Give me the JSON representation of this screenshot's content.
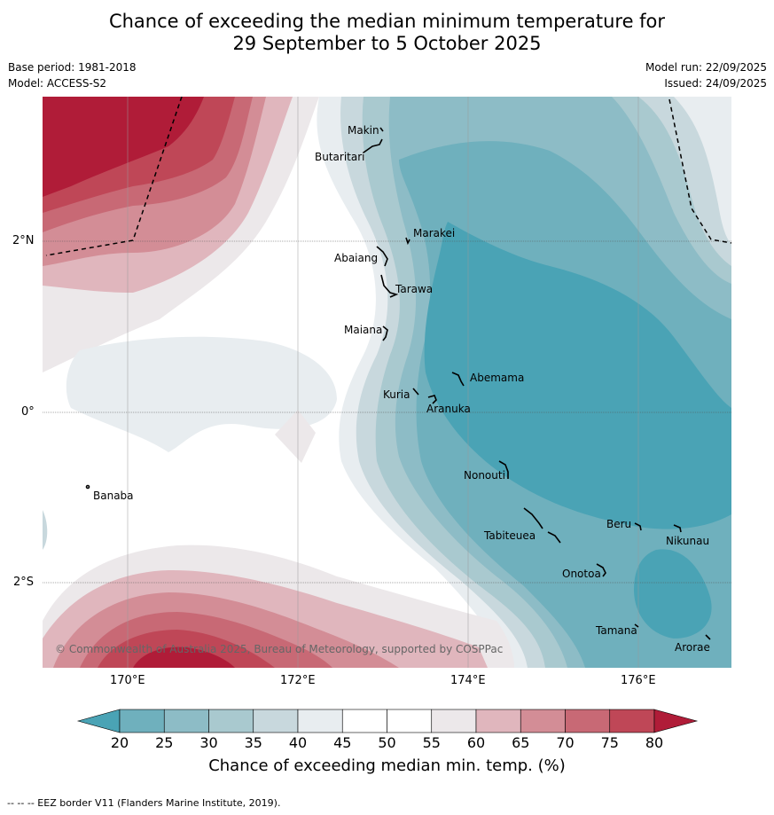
{
  "title": {
    "line1": "Chance of exceeding the median minimum temperature for",
    "line2": "29 September to 5 October 2025"
  },
  "meta": {
    "base_period": "Base period: 1981-2018",
    "model": "Model: ACCESS-S2",
    "model_run": "Model run: 22/09/2025",
    "issued": "Issued: 24/09/2025"
  },
  "axes": {
    "lat_labels": [
      "2°N",
      "0°",
      "2°S"
    ],
    "lon_labels": [
      "170°E",
      "172°E",
      "174°E",
      "176°E"
    ]
  },
  "places": [
    {
      "name": "Makin"
    },
    {
      "name": "Butaritari"
    },
    {
      "name": "Marakei"
    },
    {
      "name": "Abaiang"
    },
    {
      "name": "Tarawa"
    },
    {
      "name": "Maiana"
    },
    {
      "name": "Abemama"
    },
    {
      "name": "Kuria"
    },
    {
      "name": "Aranuka"
    },
    {
      "name": "Banaba"
    },
    {
      "name": "Nonouti"
    },
    {
      "name": "Tabiteuea"
    },
    {
      "name": "Beru"
    },
    {
      "name": "Nikunau"
    },
    {
      "name": "Onotoa"
    },
    {
      "name": "Tamana"
    },
    {
      "name": "Arorae"
    }
  ],
  "copyright": "© Commonwealth of Australia 2025, Bureau of Meteorology, supported by COSPPac",
  "colorbar": {
    "ticks": [
      "20",
      "25",
      "30",
      "35",
      "40",
      "45",
      "50",
      "55",
      "60",
      "65",
      "70",
      "75",
      "80"
    ],
    "label": "Chance of exceeding median min. temp. (%)",
    "colors": [
      "#4aa3b5",
      "#6fb0bd",
      "#8dbcc6",
      "#a9c9cf",
      "#c8d8dd",
      "#e8edf0",
      "#ffffff",
      "#ffffff",
      "#ece8ea",
      "#e0b6bd",
      "#d38d96",
      "#c86975",
      "#bf4757",
      "#b01c38"
    ]
  },
  "footer": "--  --  -- EEZ border V11 (Flanders Marine Institute, 2019)."
}
